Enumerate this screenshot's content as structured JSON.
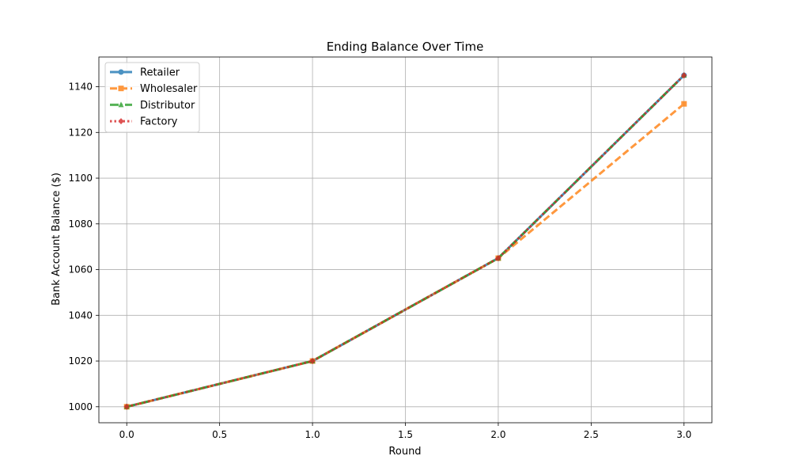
{
  "chart_data": {
    "type": "line",
    "title": "Ending Balance Over Time",
    "xlabel": "Round",
    "ylabel": "Bank Account Balance ($)",
    "x": [
      0,
      1,
      2,
      3
    ],
    "xlim": [
      -0.15,
      3.15
    ],
    "ylim": [
      993,
      1153
    ],
    "xticks": [
      0.0,
      0.5,
      1.0,
      1.5,
      2.0,
      2.5,
      3.0
    ],
    "xtick_labels": [
      "0.0",
      "0.5",
      "1.0",
      "1.5",
      "2.0",
      "2.5",
      "3.0"
    ],
    "yticks": [
      1000,
      1020,
      1040,
      1060,
      1080,
      1100,
      1120,
      1140
    ],
    "ytick_labels": [
      "1000",
      "1020",
      "1040",
      "1060",
      "1080",
      "1100",
      "1120",
      "1140"
    ],
    "grid": true,
    "legend_position": "top-left",
    "series": [
      {
        "name": "Retailer",
        "values": [
          1000,
          1020,
          1065,
          1145
        ],
        "color": "#1f77b4",
        "linestyle": "solid",
        "marker": "circle"
      },
      {
        "name": "Wholesaler",
        "values": [
          1000,
          1020,
          1065,
          1132.5
        ],
        "color": "#ff7f0e",
        "linestyle": "dashed",
        "marker": "square"
      },
      {
        "name": "Distributor",
        "values": [
          1000,
          1020,
          1065,
          1145
        ],
        "color": "#2ca02c",
        "linestyle": "dashdot",
        "marker": "triangle"
      },
      {
        "name": "Factory",
        "values": [
          1000,
          1020,
          1065,
          1145
        ],
        "color": "#d62728",
        "linestyle": "dotted",
        "marker": "diamond"
      }
    ]
  }
}
